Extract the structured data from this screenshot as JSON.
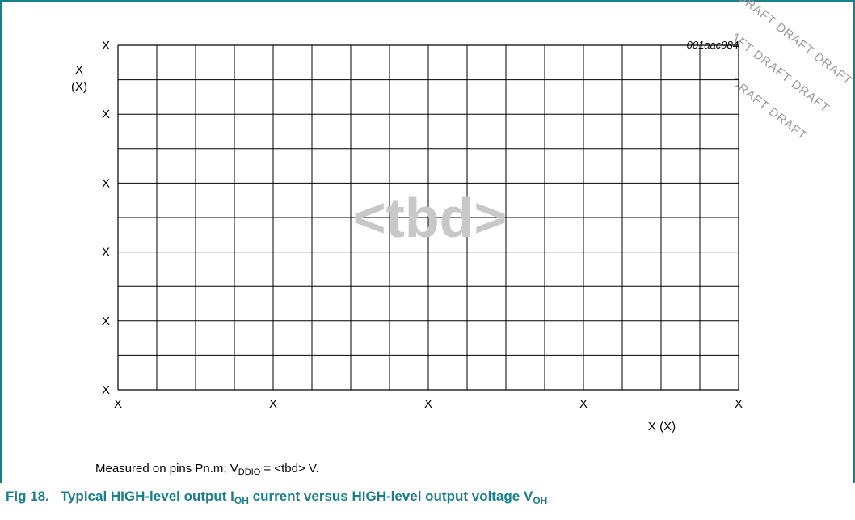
{
  "figure_code": "001aac984",
  "placeholder": "<tbd>",
  "watermark": "DRAFT DRAFT DRAFT",
  "note": {
    "prefix": "Measured on pins Pn.m; V",
    "sub": "DDIO",
    "suffix": " = <tbd> V."
  },
  "caption": {
    "fig_number": "Fig 18.",
    "p1": "Typical HIGH-level output I",
    "s1": "OH",
    "p2": " current versus HIGH-level output voltage V",
    "s2": "OH"
  },
  "chart_data": {
    "type": "line",
    "series": [],
    "grid": true,
    "y_ticks": [
      "X",
      "X",
      "X",
      "X",
      "X",
      "X"
    ],
    "x_ticks": [
      "X",
      "X",
      "X",
      "X",
      "X"
    ],
    "ylabel": "X",
    "yunit": "(X)",
    "xlabel": "X (X)",
    "x_grid_divisions": 16,
    "y_grid_divisions": 10
  },
  "colors": {
    "accent": "#1a7f8c",
    "grid": "#000000",
    "placeholder": "#c8c8c8"
  }
}
